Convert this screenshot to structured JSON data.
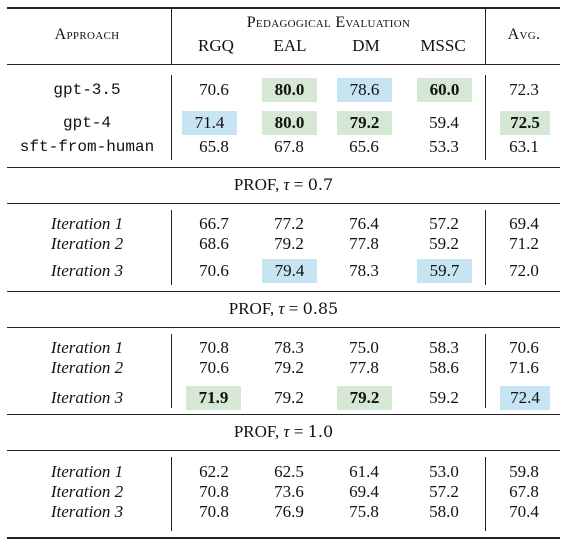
{
  "header": {
    "approach": "Approach",
    "group": "Pedagogical Evaluation",
    "avg": "Avg.",
    "columns": [
      "RGQ",
      "EAL",
      "DM",
      "MSSC"
    ]
  },
  "baselines": [
    {
      "name": "gpt-3.5",
      "values": [
        "70.6",
        "80.0",
        "78.6",
        "60.0"
      ],
      "avg": "72.3"
    },
    {
      "name": "gpt-4",
      "values": [
        "71.4",
        "80.0",
        "79.2",
        "59.4"
      ],
      "avg": "72.5"
    },
    {
      "name": "sft-from-human",
      "values": [
        "65.8",
        "67.8",
        "65.6",
        "53.3"
      ],
      "avg": "63.1"
    }
  ],
  "sections": [
    {
      "prefix": "PROF, ",
      "tau_symbol": "τ",
      "equals": " = ",
      "tau_value": "0.7",
      "rows": [
        {
          "name": "Iteration 1",
          "values": [
            "66.7",
            "77.2",
            "76.4",
            "57.2"
          ],
          "avg": "69.4"
        },
        {
          "name": "Iteration 2",
          "values": [
            "68.6",
            "79.2",
            "77.8",
            "59.2"
          ],
          "avg": "71.2"
        },
        {
          "name": "Iteration 3",
          "values": [
            "70.6",
            "79.4",
            "78.3",
            "59.7"
          ],
          "avg": "72.0"
        }
      ]
    },
    {
      "prefix": "PROF, ",
      "tau_symbol": "τ",
      "equals": " = ",
      "tau_value": "0.85",
      "rows": [
        {
          "name": "Iteration 1",
          "values": [
            "70.8",
            "78.3",
            "75.0",
            "58.3"
          ],
          "avg": "70.6"
        },
        {
          "name": "Iteration 2",
          "values": [
            "70.6",
            "79.2",
            "77.8",
            "58.6"
          ],
          "avg": "71.6"
        },
        {
          "name": "Iteration 3",
          "values": [
            "71.9",
            "79.2",
            "79.2",
            "59.2"
          ],
          "avg": "72.4"
        }
      ]
    },
    {
      "prefix": "PROF, ",
      "tau_symbol": "τ",
      "equals": " = ",
      "tau_value": "1.0",
      "rows": [
        {
          "name": "Iteration 1",
          "values": [
            "62.2",
            "62.5",
            "61.4",
            "53.0"
          ],
          "avg": "59.8"
        },
        {
          "name": "Iteration 2",
          "values": [
            "70.8",
            "73.6",
            "69.4",
            "57.2"
          ],
          "avg": "67.8"
        },
        {
          "name": "Iteration 3",
          "values": [
            "70.8",
            "76.9",
            "75.8",
            "58.0"
          ],
          "avg": "70.4"
        }
      ]
    }
  ],
  "highlight_colors": {
    "best": "#d4e8d4",
    "second": "#c6e4f2"
  }
}
